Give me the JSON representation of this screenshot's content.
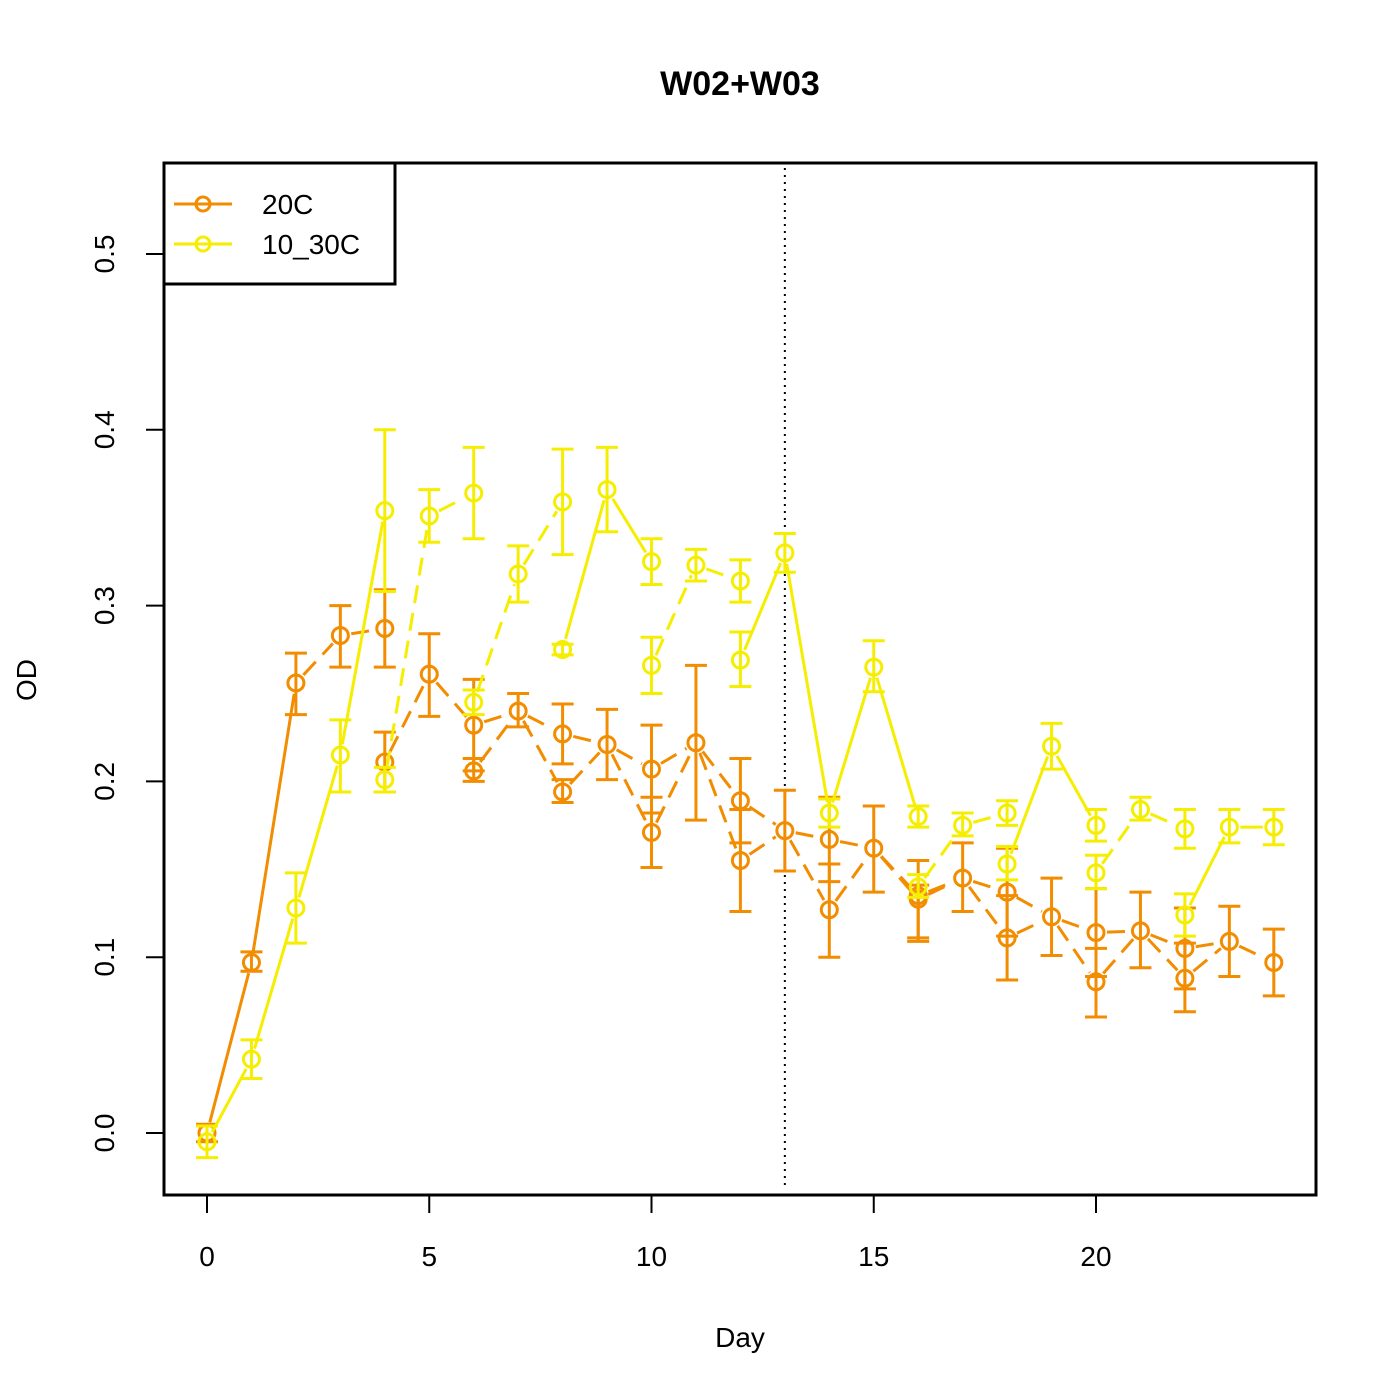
{
  "chart_data": {
    "type": "line",
    "title": "W02+W03",
    "xlabel": "Day",
    "ylabel": "OD",
    "xlim": [
      -1,
      25
    ],
    "ylim": [
      -0.035,
      0.55
    ],
    "xticks": [
      0,
      5,
      10,
      15,
      20
    ],
    "xtick_labels": [
      "0",
      "5",
      "10",
      "15",
      "20"
    ],
    "yticks": [
      0.0,
      0.1,
      0.2,
      0.3,
      0.4,
      0.5
    ],
    "ytick_labels": [
      "0.0",
      "0.1",
      "0.2",
      "0.3",
      "0.4",
      "0.5"
    ],
    "vline_x": 13,
    "legend_position": "top-left",
    "grid": false,
    "series": [
      {
        "name": "20C",
        "color": "#F28C00",
        "segments": [
          {
            "style": "solid",
            "points": [
              [
                0,
                0.0
              ],
              [
                1,
                0.097
              ],
              [
                2,
                0.256
              ]
            ]
          },
          {
            "style": "dashed",
            "points": [
              [
                2,
                0.256
              ],
              [
                3,
                0.283
              ],
              [
                4,
                0.287
              ]
            ]
          },
          {
            "style": "dashed",
            "points": [
              [
                4,
                0.211
              ],
              [
                5,
                0.261
              ],
              [
                6,
                0.232
              ],
              [
                7,
                0.24
              ],
              [
                8,
                0.227
              ],
              [
                9,
                0.221
              ],
              [
                10,
                0.207
              ],
              [
                11,
                0.222
              ],
              [
                12,
                0.189
              ],
              [
                13,
                0.172
              ],
              [
                14,
                0.167
              ],
              [
                15,
                0.162
              ],
              [
                16,
                0.133
              ],
              [
                17,
                0.145
              ],
              [
                18,
                0.137
              ],
              [
                19,
                0.123
              ],
              [
                20,
                0.114
              ],
              [
                21,
                0.115
              ],
              [
                22,
                0.105
              ],
              [
                23,
                0.109
              ],
              [
                24,
                0.097
              ]
            ]
          },
          {
            "style": "dashed",
            "points": [
              [
                6,
                0.206
              ],
              [
                7,
                0.24
              ],
              [
                8,
                0.194
              ],
              [
                9,
                0.221
              ],
              [
                10,
                0.171
              ],
              [
                11,
                0.222
              ],
              [
                12,
                0.155
              ],
              [
                13,
                0.172
              ],
              [
                14,
                0.127
              ],
              [
                15,
                0.162
              ],
              [
                16,
                0.135
              ],
              [
                17,
                0.145
              ],
              [
                18,
                0.111
              ],
              [
                19,
                0.123
              ],
              [
                20,
                0.086
              ],
              [
                21,
                0.115
              ],
              [
                22,
                0.088
              ],
              [
                23,
                0.109
              ]
            ]
          }
        ],
        "markers": [
          {
            "x": 0,
            "y": 0.0,
            "lo": -0.005,
            "hi": 0.005
          },
          {
            "x": 1,
            "y": 0.097,
            "lo": 0.092,
            "hi": 0.103
          },
          {
            "x": 2,
            "y": 0.256,
            "lo": 0.238,
            "hi": 0.273
          },
          {
            "x": 3,
            "y": 0.283,
            "lo": 0.265,
            "hi": 0.3
          },
          {
            "x": 4,
            "y": 0.287,
            "lo": 0.265,
            "hi": 0.309
          },
          {
            "x": 4,
            "y": 0.211,
            "lo": 0.194,
            "hi": 0.228
          },
          {
            "x": 5,
            "y": 0.261,
            "lo": 0.237,
            "hi": 0.284
          },
          {
            "x": 6,
            "y": 0.232,
            "lo": 0.206,
            "hi": 0.258
          },
          {
            "x": 6,
            "y": 0.206,
            "lo": 0.2,
            "hi": 0.213
          },
          {
            "x": 7,
            "y": 0.24,
            "lo": 0.231,
            "hi": 0.25
          },
          {
            "x": 8,
            "y": 0.227,
            "lo": 0.21,
            "hi": 0.244
          },
          {
            "x": 8,
            "y": 0.194,
            "lo": 0.188,
            "hi": 0.201
          },
          {
            "x": 9,
            "y": 0.221,
            "lo": 0.201,
            "hi": 0.241
          },
          {
            "x": 10,
            "y": 0.207,
            "lo": 0.182,
            "hi": 0.232
          },
          {
            "x": 10,
            "y": 0.171,
            "lo": 0.151,
            "hi": 0.191
          },
          {
            "x": 11,
            "y": 0.222,
            "lo": 0.178,
            "hi": 0.266
          },
          {
            "x": 12,
            "y": 0.189,
            "lo": 0.165,
            "hi": 0.213
          },
          {
            "x": 12,
            "y": 0.155,
            "lo": 0.126,
            "hi": 0.184
          },
          {
            "x": 13,
            "y": 0.172,
            "lo": 0.149,
            "hi": 0.195
          },
          {
            "x": 14,
            "y": 0.167,
            "lo": 0.143,
            "hi": 0.191
          },
          {
            "x": 14,
            "y": 0.127,
            "lo": 0.1,
            "hi": 0.153
          },
          {
            "x": 15,
            "y": 0.162,
            "lo": 0.137,
            "hi": 0.186
          },
          {
            "x": 16,
            "y": 0.133,
            "lo": 0.111,
            "hi": 0.155
          },
          {
            "x": 16,
            "y": 0.135,
            "lo": 0.109,
            "hi": 0.141
          },
          {
            "x": 17,
            "y": 0.145,
            "lo": 0.126,
            "hi": 0.165
          },
          {
            "x": 18,
            "y": 0.137,
            "lo": 0.112,
            "hi": 0.162
          },
          {
            "x": 18,
            "y": 0.111,
            "lo": 0.087,
            "hi": 0.135
          },
          {
            "x": 19,
            "y": 0.123,
            "lo": 0.101,
            "hi": 0.145
          },
          {
            "x": 20,
            "y": 0.114,
            "lo": 0.089,
            "hi": 0.139
          },
          {
            "x": 20,
            "y": 0.086,
            "lo": 0.066,
            "hi": 0.105
          },
          {
            "x": 21,
            "y": 0.115,
            "lo": 0.094,
            "hi": 0.137
          },
          {
            "x": 22,
            "y": 0.105,
            "lo": 0.082,
            "hi": 0.128
          },
          {
            "x": 22,
            "y": 0.088,
            "lo": 0.069,
            "hi": 0.108
          },
          {
            "x": 23,
            "y": 0.109,
            "lo": 0.089,
            "hi": 0.129
          },
          {
            "x": 24,
            "y": 0.097,
            "lo": 0.078,
            "hi": 0.116
          }
        ]
      },
      {
        "name": "10_30C",
        "color": "#F5EE00",
        "segments": [
          {
            "style": "solid",
            "points": [
              [
                0,
                -0.005
              ],
              [
                1,
                0.042
              ],
              [
                2,
                0.128
              ],
              [
                3,
                0.215
              ],
              [
                4,
                0.354
              ]
            ]
          },
          {
            "style": "dashed",
            "points": [
              [
                4,
                0.201
              ],
              [
                5,
                0.351
              ],
              [
                6,
                0.364
              ]
            ]
          },
          {
            "style": "dashed",
            "points": [
              [
                6,
                0.245
              ],
              [
                7,
                0.318
              ],
              [
                8,
                0.359
              ]
            ]
          },
          {
            "style": "solid",
            "points": [
              [
                8,
                0.275
              ],
              [
                9,
                0.366
              ],
              [
                10,
                0.325
              ]
            ]
          },
          {
            "style": "dashed",
            "points": [
              [
                10,
                0.266
              ],
              [
                11,
                0.323
              ],
              [
                12,
                0.314
              ]
            ]
          },
          {
            "style": "solid",
            "points": [
              [
                12,
                0.269
              ],
              [
                13,
                0.33
              ],
              [
                14,
                0.182
              ],
              [
                15,
                0.265
              ],
              [
                16,
                0.18
              ]
            ]
          },
          {
            "style": "dashed",
            "points": [
              [
                16,
                0.14
              ],
              [
                17,
                0.175
              ],
              [
                18,
                0.182
              ]
            ]
          },
          {
            "style": "solid",
            "points": [
              [
                18,
                0.153
              ],
              [
                19,
                0.22
              ],
              [
                20,
                0.175
              ]
            ]
          },
          {
            "style": "dashed",
            "points": [
              [
                20,
                0.148
              ],
              [
                21,
                0.184
              ],
              [
                22,
                0.173
              ]
            ]
          },
          {
            "style": "solid",
            "points": [
              [
                22,
                0.124
              ],
              [
                23,
                0.174
              ],
              [
                24,
                0.174
              ]
            ]
          }
        ],
        "markers": [
          {
            "x": 0,
            "y": -0.005,
            "lo": -0.014,
            "hi": 0.004
          },
          {
            "x": 1,
            "y": 0.042,
            "lo": 0.031,
            "hi": 0.053
          },
          {
            "x": 2,
            "y": 0.128,
            "lo": 0.108,
            "hi": 0.148
          },
          {
            "x": 3,
            "y": 0.215,
            "lo": 0.194,
            "hi": 0.235
          },
          {
            "x": 4,
            "y": 0.354,
            "lo": 0.308,
            "hi": 0.4
          },
          {
            "x": 4,
            "y": 0.201,
            "lo": 0.194,
            "hi": 0.208
          },
          {
            "x": 5,
            "y": 0.351,
            "lo": 0.336,
            "hi": 0.366
          },
          {
            "x": 6,
            "y": 0.364,
            "lo": 0.338,
            "hi": 0.39
          },
          {
            "x": 6,
            "y": 0.245,
            "lo": 0.238,
            "hi": 0.252
          },
          {
            "x": 7,
            "y": 0.318,
            "lo": 0.302,
            "hi": 0.334
          },
          {
            "x": 8,
            "y": 0.359,
            "lo": 0.329,
            "hi": 0.389
          },
          {
            "x": 8,
            "y": 0.275,
            "lo": 0.272,
            "hi": 0.278
          },
          {
            "x": 9,
            "y": 0.366,
            "lo": 0.342,
            "hi": 0.39
          },
          {
            "x": 10,
            "y": 0.325,
            "lo": 0.312,
            "hi": 0.338
          },
          {
            "x": 10,
            "y": 0.266,
            "lo": 0.25,
            "hi": 0.282
          },
          {
            "x": 11,
            "y": 0.323,
            "lo": 0.314,
            "hi": 0.332
          },
          {
            "x": 12,
            "y": 0.314,
            "lo": 0.302,
            "hi": 0.326
          },
          {
            "x": 12,
            "y": 0.269,
            "lo": 0.254,
            "hi": 0.285
          },
          {
            "x": 13,
            "y": 0.33,
            "lo": 0.319,
            "hi": 0.341
          },
          {
            "x": 14,
            "y": 0.182,
            "lo": 0.174,
            "hi": 0.19
          },
          {
            "x": 15,
            "y": 0.265,
            "lo": 0.251,
            "hi": 0.28
          },
          {
            "x": 16,
            "y": 0.18,
            "lo": 0.174,
            "hi": 0.186
          },
          {
            "x": 16,
            "y": 0.14,
            "lo": 0.134,
            "hi": 0.147
          },
          {
            "x": 17,
            "y": 0.175,
            "lo": 0.169,
            "hi": 0.182
          },
          {
            "x": 18,
            "y": 0.182,
            "lo": 0.175,
            "hi": 0.189
          },
          {
            "x": 18,
            "y": 0.153,
            "lo": 0.144,
            "hi": 0.163
          },
          {
            "x": 19,
            "y": 0.22,
            "lo": 0.207,
            "hi": 0.233
          },
          {
            "x": 20,
            "y": 0.175,
            "lo": 0.166,
            "hi": 0.184
          },
          {
            "x": 20,
            "y": 0.148,
            "lo": 0.139,
            "hi": 0.158
          },
          {
            "x": 21,
            "y": 0.184,
            "lo": 0.178,
            "hi": 0.191
          },
          {
            "x": 22,
            "y": 0.173,
            "lo": 0.162,
            "hi": 0.184
          },
          {
            "x": 22,
            "y": 0.124,
            "lo": 0.112,
            "hi": 0.136
          },
          {
            "x": 23,
            "y": 0.174,
            "lo": 0.165,
            "hi": 0.184
          },
          {
            "x": 24,
            "y": 0.174,
            "lo": 0.164,
            "hi": 0.184
          }
        ]
      }
    ]
  }
}
